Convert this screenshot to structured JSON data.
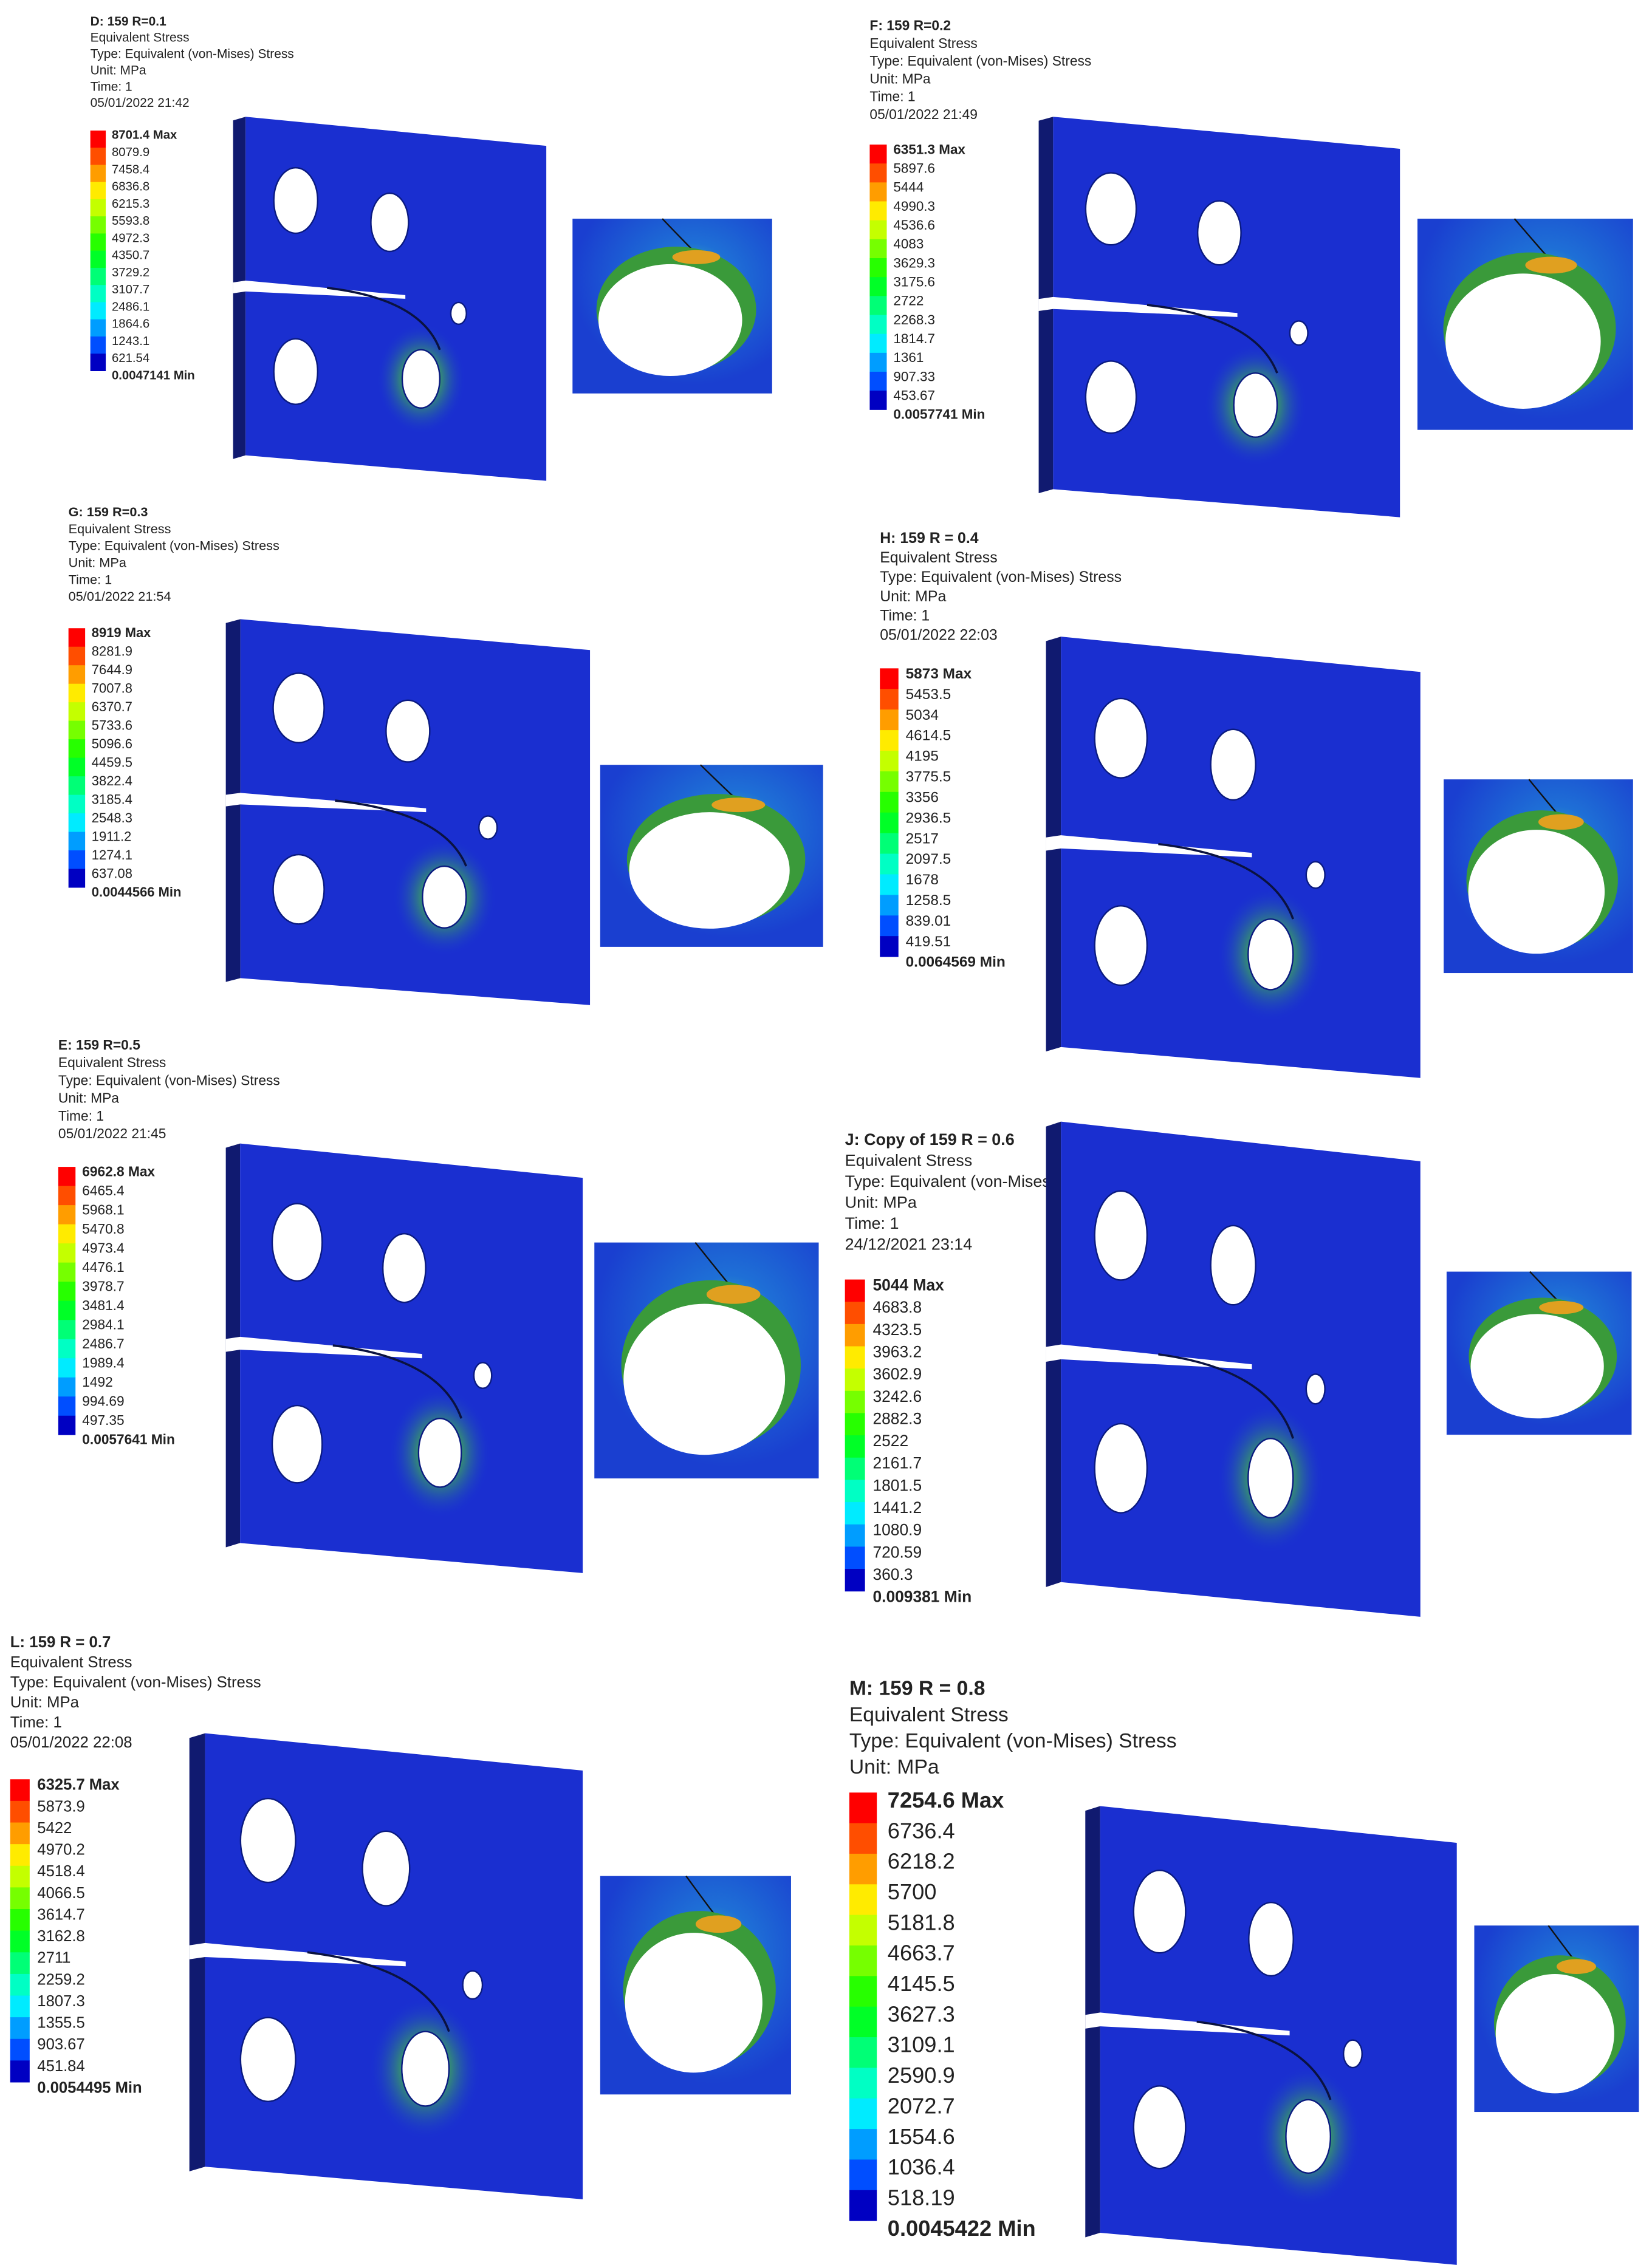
{
  "panels": [
    {
      "title": "D: 159 R=0.1",
      "lines": [
        "Equivalent Stress",
        "Type: Equivalent (von-Mises) Stress",
        "Unit: MPa",
        "Time: 1",
        "05/01/2022 21:42"
      ],
      "legend": [
        "8701.4 Max",
        "8079.9",
        "7458.4",
        "6836.8",
        "6215.3",
        "5593.8",
        "4972.3",
        "4350.7",
        "3729.2",
        "3107.7",
        "2486.1",
        "1864.6",
        "1243.1",
        "621.54",
        "0.0047141 Min"
      ]
    },
    {
      "title": "F: 159 R=0.2",
      "lines": [
        "Equivalent Stress",
        "Type: Equivalent (von-Mises) Stress",
        "Unit: MPa",
        "Time: 1",
        "05/01/2022 21:49"
      ],
      "legend": [
        "6351.3 Max",
        "5897.6",
        "5444",
        "4990.3",
        "4536.6",
        "4083",
        "3629.3",
        "3175.6",
        "2722",
        "2268.3",
        "1814.7",
        "1361",
        "907.33",
        "453.67",
        "0.0057741 Min"
      ]
    },
    {
      "title": "G: 159 R=0.3",
      "lines": [
        "Equivalent Stress",
        "Type: Equivalent (von-Mises) Stress",
        "Unit: MPa",
        "Time: 1",
        "05/01/2022 21:54"
      ],
      "legend": [
        "8919 Max",
        "8281.9",
        "7644.9",
        "7007.8",
        "6370.7",
        "5733.6",
        "5096.6",
        "4459.5",
        "3822.4",
        "3185.4",
        "2548.3",
        "1911.2",
        "1274.1",
        "637.08",
        "0.0044566 Min"
      ]
    },
    {
      "title": "H: 159 R = 0.4",
      "lines": [
        "Equivalent Stress",
        "Type: Equivalent (von-Mises) Stress",
        "Unit: MPa",
        "Time: 1",
        "05/01/2022 22:03"
      ],
      "legend": [
        "5873 Max",
        "5453.5",
        "5034",
        "4614.5",
        "4195",
        "3775.5",
        "3356",
        "2936.5",
        "2517",
        "2097.5",
        "1678",
        "1258.5",
        "839.01",
        "419.51",
        "0.0064569 Min"
      ]
    },
    {
      "title": "E: 159 R=0.5",
      "lines": [
        "Equivalent Stress",
        "Type: Equivalent (von-Mises) Stress",
        "Unit: MPa",
        "Time: 1",
        "05/01/2022 21:45"
      ],
      "legend": [
        "6962.8 Max",
        "6465.4",
        "5968.1",
        "5470.8",
        "4973.4",
        "4476.1",
        "3978.7",
        "3481.4",
        "2984.1",
        "2486.7",
        "1989.4",
        "1492",
        "994.69",
        "497.35",
        "0.0057641 Min"
      ]
    },
    {
      "title": "J: Copy of 159 R = 0.6",
      "lines": [
        "Equivalent Stress",
        "Type: Equivalent (von-Mises) Stress",
        "Unit: MPa",
        "Time: 1",
        "24/12/2021 23:14"
      ],
      "legend": [
        "5044 Max",
        "4683.8",
        "4323.5",
        "3963.2",
        "3602.9",
        "3242.6",
        "2882.3",
        "2522",
        "2161.7",
        "1801.5",
        "1441.2",
        "1080.9",
        "720.59",
        "360.3",
        "0.009381 Min"
      ]
    },
    {
      "title": "L: 159 R = 0.7",
      "lines": [
        "Equivalent Stress",
        "Type: Equivalent (von-Mises) Stress",
        "Unit: MPa",
        "Time: 1",
        "05/01/2022 22:08"
      ],
      "legend": [
        "6325.7 Max",
        "5873.9",
        "5422",
        "4970.2",
        "4518.4",
        "4066.5",
        "3614.7",
        "3162.8",
        "2711",
        "2259.2",
        "1807.3",
        "1355.5",
        "903.67",
        "451.84",
        "0.0054495 Min"
      ]
    },
    {
      "title": "M: 159 R = 0.8",
      "lines": [
        "Equivalent Stress",
        "Type: Equivalent (von-Mises) Stress",
        "Unit: MPa"
      ],
      "legend": [
        "7254.6 Max",
        "6736.4",
        "6218.2",
        "5700",
        "5181.8",
        "4663.7",
        "4145.5",
        "3627.3",
        "3109.1",
        "2590.9",
        "2072.7",
        "1554.6",
        "1036.4",
        "518.19",
        "0.0045422 Min"
      ]
    }
  ]
}
